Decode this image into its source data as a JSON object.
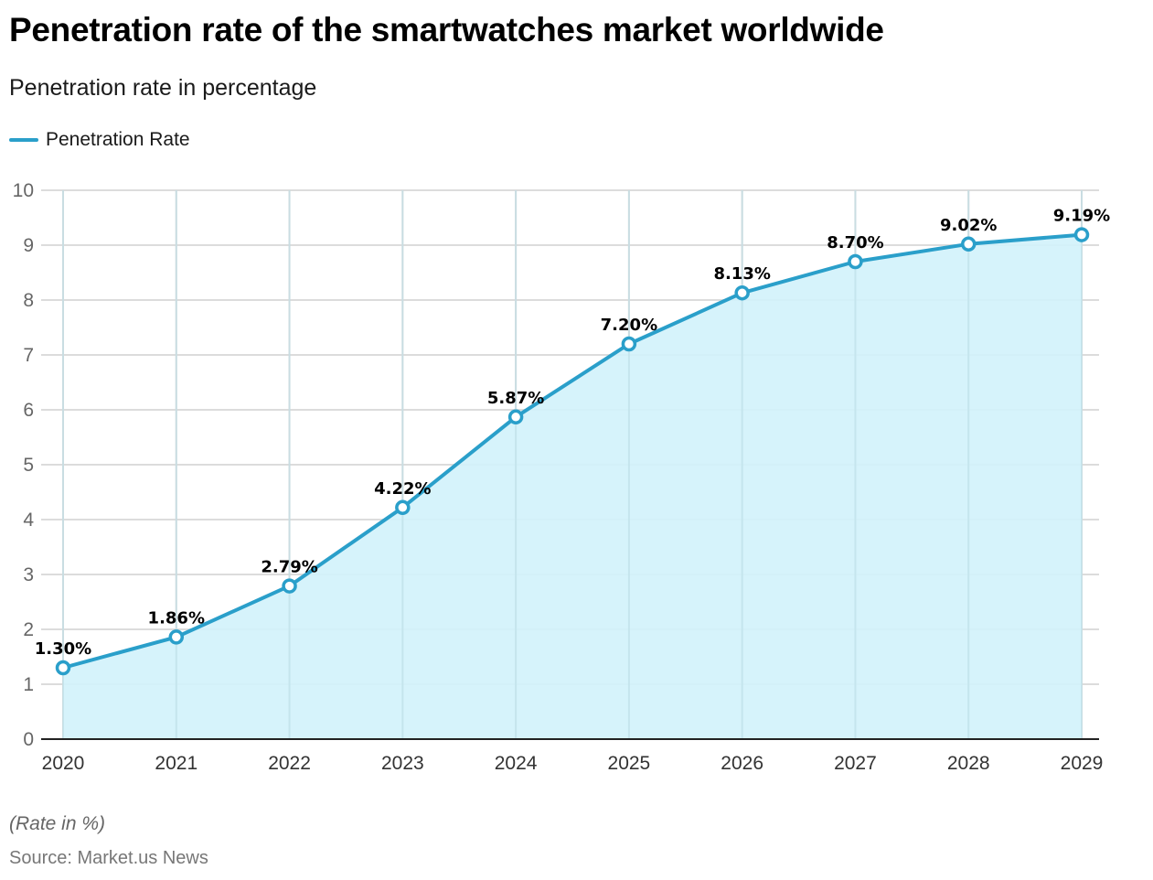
{
  "header": {
    "title": "Penetration rate of the smartwatches market worldwide",
    "subtitle": "Penetration rate in percentage"
  },
  "footer": {
    "note": "(Rate in %)",
    "source": "Source: Market.us News"
  },
  "colors": {
    "line": "#2a9fca",
    "area": "#d2f2fb",
    "grid": "#dcdcdc",
    "axis": "#222222"
  },
  "chart_data": {
    "type": "area",
    "title": "Penetration rate of the smartwatches market worldwide",
    "subtitle": "Penetration rate in percentage",
    "xlabel": "",
    "ylabel": "",
    "x": [
      "2020",
      "2021",
      "2022",
      "2023",
      "2024",
      "2025",
      "2026",
      "2027",
      "2028",
      "2029"
    ],
    "series": [
      {
        "name": "Penetration Rate",
        "values": [
          1.3,
          1.86,
          2.79,
          4.22,
          5.87,
          7.2,
          8.13,
          8.7,
          9.02,
          9.19
        ],
        "labels": [
          "1.30%",
          "1.86%",
          "2.79%",
          "4.22%",
          "5.87%",
          "7.20%",
          "8.13%",
          "8.70%",
          "9.02%",
          "9.19%"
        ]
      }
    ],
    "ylim": [
      0,
      10
    ],
    "yticks": [
      0,
      1,
      2,
      3,
      4,
      5,
      6,
      7,
      8,
      9,
      10
    ],
    "grid": true,
    "legend": "top-left"
  }
}
